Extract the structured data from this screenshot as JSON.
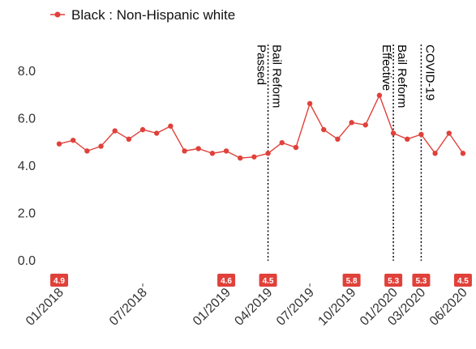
{
  "chart_data": {
    "type": "line",
    "title": "",
    "xlabel": "",
    "ylabel": "",
    "ylim": [
      -1.2,
      9.2
    ],
    "y_ticks": [
      "0.0",
      "2.0",
      "4.0",
      "6.0",
      "8.0"
    ],
    "y_tick_values": [
      0,
      2,
      4,
      6,
      8
    ],
    "grid": false,
    "legend": {
      "position": "top-left",
      "entries": [
        "Black : Non-Hispanic white"
      ]
    },
    "x_ticks": [
      {
        "label": "01/2018",
        "month": 0
      },
      {
        "label": "07/2018",
        "month": 6
      },
      {
        "label": "01/2019",
        "month": 12
      },
      {
        "label": "04/2019",
        "month": 15
      },
      {
        "label": "07/2019",
        "month": 18
      },
      {
        "label": "10/2019",
        "month": 21
      },
      {
        "label": "01/2020",
        "month": 24
      },
      {
        "label": "03/2020",
        "month": 26
      },
      {
        "label": "06/2020",
        "month": 29
      }
    ],
    "series": [
      {
        "name": "Black : Non-Hispanic white",
        "color": "#e0413a",
        "x": [
          0,
          1,
          2,
          3,
          4,
          5,
          6,
          7,
          8,
          9,
          10,
          11,
          12,
          13,
          14,
          15,
          16,
          17,
          18,
          19,
          20,
          21,
          22,
          23,
          24,
          25,
          26,
          27,
          28,
          29
        ],
        "values": [
          4.9,
          5.05,
          4.6,
          4.8,
          5.45,
          5.1,
          5.5,
          5.35,
          5.65,
          4.6,
          4.7,
          4.5,
          4.6,
          4.3,
          4.35,
          4.5,
          4.95,
          4.75,
          6.6,
          5.5,
          5.1,
          5.8,
          5.7,
          6.95,
          5.35,
          5.1,
          5.3,
          4.5,
          5.35,
          4.5
        ]
      }
    ],
    "annotations": [
      {
        "month": 15,
        "lines": [
          "Bail Reform",
          "Passed"
        ]
      },
      {
        "month": 24,
        "lines": [
          "Bail Reform",
          "Effective"
        ]
      },
      {
        "month": 26,
        "lines": [
          "COVID-19"
        ]
      }
    ],
    "data_labels": [
      {
        "month": 0,
        "text": "4.9"
      },
      {
        "month": 12,
        "text": "4.6"
      },
      {
        "month": 15,
        "text": "4.5"
      },
      {
        "month": 21,
        "text": "5.8"
      },
      {
        "month": 24,
        "text": "5.3"
      },
      {
        "month": 26,
        "text": "5.3"
      },
      {
        "month": 29,
        "text": "4.5"
      }
    ]
  }
}
